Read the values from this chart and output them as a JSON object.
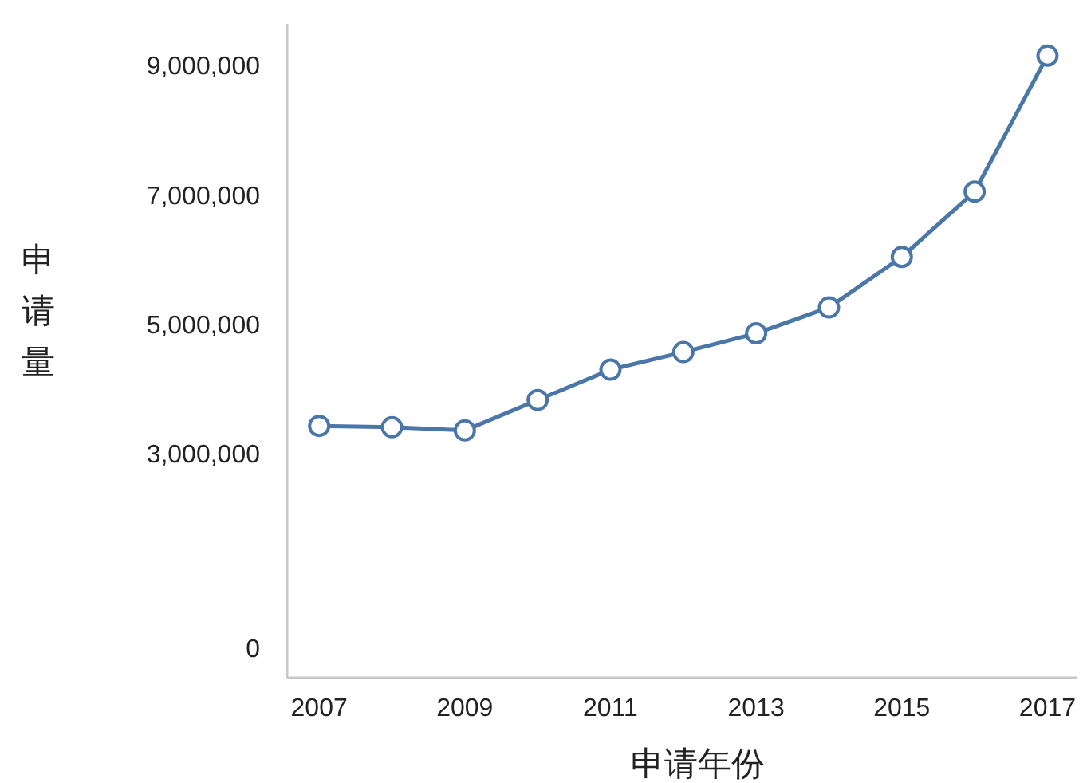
{
  "chart_data": {
    "type": "line",
    "xlabel": "申请年份",
    "ylabel": "申请量",
    "x": [
      2007,
      2008,
      2009,
      2010,
      2011,
      2012,
      2013,
      2014,
      2015,
      2016,
      2017
    ],
    "series": [
      {
        "color": "#4a76a8",
        "values": [
          3420000,
          3400000,
          3350000,
          3820000,
          4290000,
          4560000,
          4850000,
          5250000,
          6030000,
          7040000,
          9140000
        ]
      }
    ],
    "xlim": [
      2006.56,
      2017.4
    ],
    "xticks": [
      2007,
      2009,
      2011,
      2013,
      2015,
      2017
    ],
    "ylim": [
      -470000,
      9630000
    ],
    "yticks": [
      {
        "value": 0,
        "label": "0"
      },
      {
        "value": 3000000,
        "label": "3,000,000"
      },
      {
        "value": 5000000,
        "label": "5,000,000"
      },
      {
        "value": 7000000,
        "label": "7,000,000"
      },
      {
        "value": 9000000,
        "label": "9,000,000"
      }
    ],
    "marker": "circle",
    "grid": false
  }
}
